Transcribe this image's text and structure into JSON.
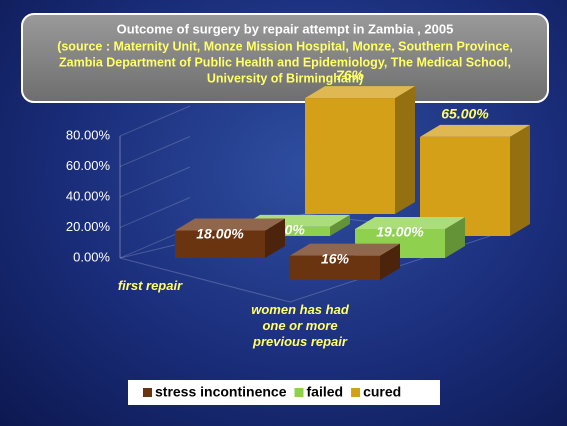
{
  "chart_data": {
    "type": "bar",
    "title": "Outcome of surgery by repair attempt in Zambia , 2005",
    "subtitle": [
      "(source : Maternity Unit, Monze Mission Hospital, Monze, Southern Province,",
      "Zambia Department of Public Health and Epidemiology, The Medical School,",
      "University of Birmingham)"
    ],
    "categories": [
      "first repair",
      "women has had one or more previous repair"
    ],
    "series": [
      {
        "name": "stress incontinence",
        "color": "#6b3410",
        "values": [
          18,
          16
        ],
        "value_labels": [
          "18.00%",
          "16%"
        ]
      },
      {
        "name": "failed",
        "color": "#8fd14f",
        "values": [
          6,
          19
        ],
        "value_labels": [
          "6.00%",
          "19.00%"
        ]
      },
      {
        "name": "cured",
        "color": "#d4a017",
        "values": [
          76,
          65
        ],
        "value_labels": [
          "76%",
          "65.00%"
        ]
      }
    ],
    "ylim": [
      0,
      80
    ],
    "yticks": [
      {
        "value": 0,
        "label": "0.00%"
      },
      {
        "value": 20,
        "label": "20.00%"
      },
      {
        "value": 40,
        "label": "40.00%"
      },
      {
        "value": 60,
        "label": "60.00%"
      },
      {
        "value": 80,
        "label": "80.00%"
      }
    ],
    "legend": "bottom"
  }
}
